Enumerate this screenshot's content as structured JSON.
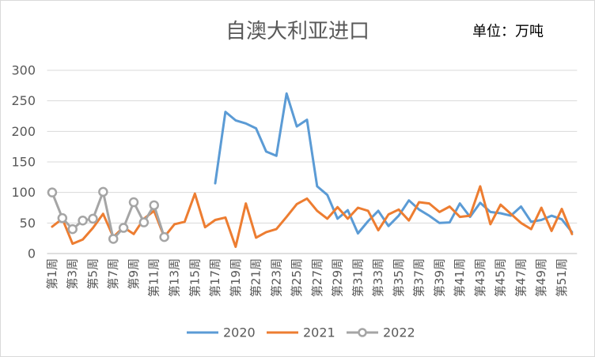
{
  "chart_data": {
    "type": "line",
    "title": "自澳大利亚进口",
    "unit": "单位：万吨",
    "xlabel": "",
    "ylabel": "",
    "ylim": [
      0,
      300
    ],
    "yticks": [
      0,
      50,
      100,
      150,
      200,
      250,
      300
    ],
    "grid": true,
    "legend_position": "bottom",
    "x": [
      1,
      2,
      3,
      4,
      5,
      6,
      7,
      8,
      9,
      10,
      11,
      12,
      13,
      14,
      15,
      16,
      17,
      18,
      19,
      20,
      21,
      22,
      23,
      24,
      25,
      26,
      27,
      28,
      29,
      30,
      31,
      32,
      33,
      34,
      35,
      36,
      37,
      38,
      39,
      40,
      41,
      42,
      43,
      44,
      45,
      46,
      47,
      48,
      49,
      50,
      51,
      52
    ],
    "x_tick_labels": [
      "第1周",
      "第3周",
      "第5周",
      "第7周",
      "第9周",
      "第11周",
      "第13周",
      "第15周",
      "第17周",
      "第19周",
      "第21周",
      "第23周",
      "第25周",
      "第27周",
      "第29周",
      "第31周",
      "第33周",
      "第35周",
      "第37周",
      "第39周",
      "第41周",
      "第43周",
      "第45周",
      "第47周",
      "第49周",
      "第51周"
    ],
    "series": [
      {
        "name": "2020",
        "color": "#5B9BD5",
        "marker": "none",
        "values": [
          null,
          null,
          null,
          null,
          null,
          null,
          null,
          null,
          null,
          null,
          null,
          null,
          null,
          null,
          null,
          null,
          115,
          232,
          218,
          213,
          205,
          167,
          160,
          262,
          208,
          219,
          110,
          96,
          57,
          71,
          33,
          53,
          70,
          45,
          62,
          87,
          72,
          62,
          50,
          51,
          82,
          60,
          83,
          68,
          66,
          62,
          77,
          52,
          55,
          62,
          56,
          35
        ]
      },
      {
        "name": "2021",
        "color": "#ED7D31",
        "marker": "none",
        "values": [
          44,
          57,
          16,
          23,
          42,
          65,
          27,
          43,
          32,
          57,
          70,
          27,
          48,
          52,
          98,
          43,
          55,
          59,
          11,
          82,
          26,
          35,
          40,
          60,
          81,
          90,
          70,
          57,
          76,
          57,
          75,
          70,
          38,
          64,
          72,
          54,
          84,
          82,
          68,
          77,
          60,
          62,
          110,
          48,
          80,
          65,
          50,
          40,
          75,
          37,
          73,
          32
        ]
      },
      {
        "name": "2022",
        "color": "#A5A5A5",
        "marker": "circle",
        "values": [
          100,
          58,
          40,
          54,
          57,
          101,
          24,
          42,
          84,
          51,
          79,
          27,
          null,
          null,
          null,
          null,
          null,
          null,
          null,
          null,
          null,
          null,
          null,
          null,
          null,
          null,
          null,
          null,
          null,
          null,
          null,
          null,
          null,
          null,
          null,
          null,
          null,
          null,
          null,
          null,
          null,
          null,
          null,
          null,
          null,
          null,
          null,
          null,
          null,
          null,
          null,
          null
        ]
      }
    ]
  }
}
